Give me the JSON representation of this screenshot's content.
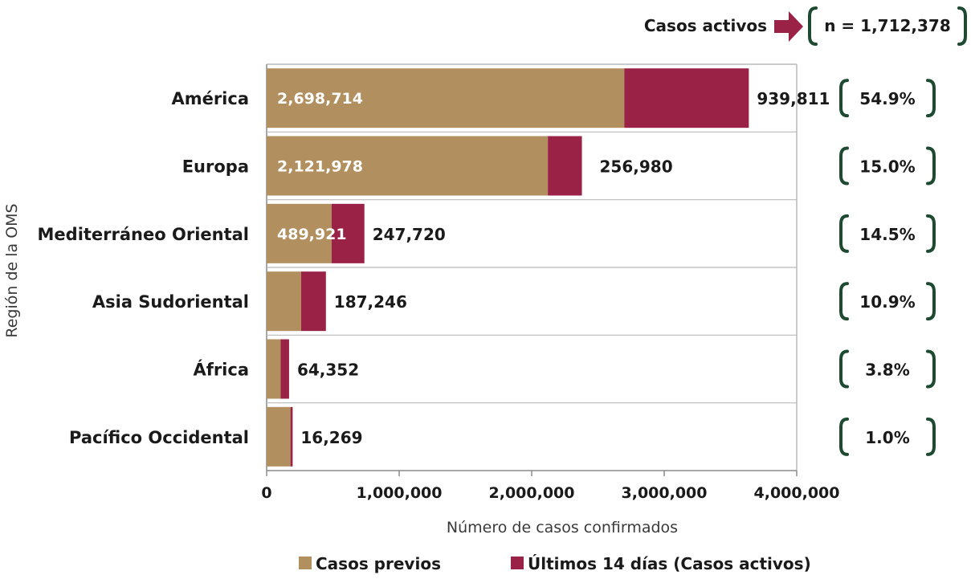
{
  "chart_data": {
    "type": "bar",
    "orientation": "horizontal",
    "stacked": true,
    "title": "",
    "xlabel": "Número de casos confirmados",
    "ylabel": "Región de la OMS",
    "xlim": [
      0,
      4000000
    ],
    "x_ticks": [
      "0",
      "1,000,000",
      "2,000,000",
      "3,000,000",
      "4,000,000"
    ],
    "grid": "horizontal separators",
    "legend_position": "bottom",
    "categories": [
      "América",
      "Europa",
      "Mediterráneo Oriental",
      "Asia Sudoriental",
      "África",
      "Pacífico Occidental"
    ],
    "series": [
      {
        "name": "Casos previos",
        "color": "#b18f5f",
        "values": [
          2698714,
          2121978,
          489921,
          260000,
          105000,
          180000
        ],
        "labels": [
          "2,698,714",
          "2,121,978",
          "489,921",
          "",
          "",
          ""
        ]
      },
      {
        "name": "Últimos 14 días (Casos activos)",
        "color": "#9b2247",
        "values": [
          939811,
          256980,
          247720,
          187246,
          64352,
          16269
        ],
        "labels": [
          "939,811",
          "256,980",
          "247,720",
          "187,246",
          "64,352",
          "16,269"
        ]
      }
    ],
    "percentages": [
      "54.9%",
      "15.0%",
      "14.5%",
      "10.9%",
      "3.8%",
      "1.0%"
    ],
    "total_active": {
      "label": "Casos activos",
      "value": "n = 1,712,378"
    }
  }
}
